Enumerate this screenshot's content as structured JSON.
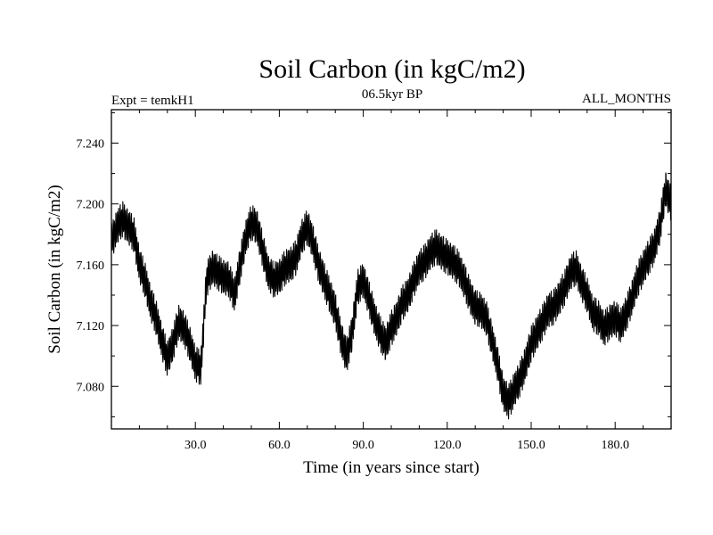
{
  "chart_data": {
    "type": "line",
    "title": "Soil Carbon (in kgC/m2)",
    "subtitle_left": "Expt = temkH1",
    "subtitle_center": "06.5kyr BP",
    "subtitle_right": "ALL_MONTHS",
    "xlabel": "Time (in years since start)",
    "ylabel": "Soil Carbon (in kgC/m2)",
    "xlim": [
      0,
      200
    ],
    "ylim": [
      7.052,
      7.262
    ],
    "x_ticks": [
      30,
      60,
      90,
      120,
      150,
      180
    ],
    "x_tick_labels": [
      "30.0",
      "60.0",
      "90.0",
      "120.0",
      "150.0",
      "180.0"
    ],
    "y_ticks": [
      7.08,
      7.12,
      7.16,
      7.2,
      7.24
    ],
    "y_tick_labels": [
      "7.080",
      "7.120",
      "7.160",
      "7.200",
      "7.240"
    ],
    "grid": false,
    "series": [
      {
        "name": "Soil Carbon",
        "color": "#000000",
        "monthly_variation": 0.02,
        "x": [
          0,
          2,
          4,
          6,
          8,
          10,
          12,
          14,
          16,
          18,
          20,
          22,
          24,
          26,
          28,
          30,
          32,
          34,
          36,
          38,
          40,
          42,
          44,
          46,
          48,
          50,
          52,
          54,
          56,
          58,
          60,
          62,
          64,
          66,
          68,
          70,
          72,
          74,
          76,
          78,
          80,
          82,
          84,
          86,
          88,
          90,
          92,
          94,
          96,
          98,
          100,
          102,
          104,
          106,
          108,
          110,
          112,
          114,
          116,
          118,
          120,
          122,
          124,
          126,
          128,
          130,
          132,
          134,
          136,
          138,
          140,
          142,
          144,
          146,
          148,
          150,
          152,
          154,
          156,
          158,
          160,
          162,
          164,
          166,
          168,
          170,
          172,
          174,
          176,
          178,
          180,
          182,
          184,
          186,
          188,
          190,
          192,
          194,
          196,
          198,
          200
        ],
        "values": [
          7.175,
          7.185,
          7.19,
          7.185,
          7.18,
          7.16,
          7.15,
          7.135,
          7.125,
          7.11,
          7.098,
          7.108,
          7.122,
          7.118,
          7.108,
          7.095,
          7.092,
          7.15,
          7.158,
          7.155,
          7.152,
          7.15,
          7.14,
          7.16,
          7.178,
          7.188,
          7.185,
          7.17,
          7.155,
          7.15,
          7.152,
          7.158,
          7.16,
          7.165,
          7.178,
          7.185,
          7.175,
          7.16,
          7.15,
          7.14,
          7.13,
          7.112,
          7.1,
          7.115,
          7.145,
          7.15,
          7.138,
          7.125,
          7.115,
          7.108,
          7.118,
          7.125,
          7.135,
          7.14,
          7.15,
          7.158,
          7.162,
          7.168,
          7.172,
          7.168,
          7.165,
          7.162,
          7.158,
          7.15,
          7.14,
          7.132,
          7.13,
          7.125,
          7.11,
          7.095,
          7.075,
          7.07,
          7.078,
          7.085,
          7.095,
          7.108,
          7.115,
          7.122,
          7.13,
          7.132,
          7.138,
          7.145,
          7.155,
          7.158,
          7.148,
          7.14,
          7.128,
          7.125,
          7.118,
          7.122,
          7.125,
          7.12,
          7.128,
          7.138,
          7.15,
          7.158,
          7.165,
          7.172,
          7.185,
          7.21,
          7.2
        ]
      }
    ]
  }
}
